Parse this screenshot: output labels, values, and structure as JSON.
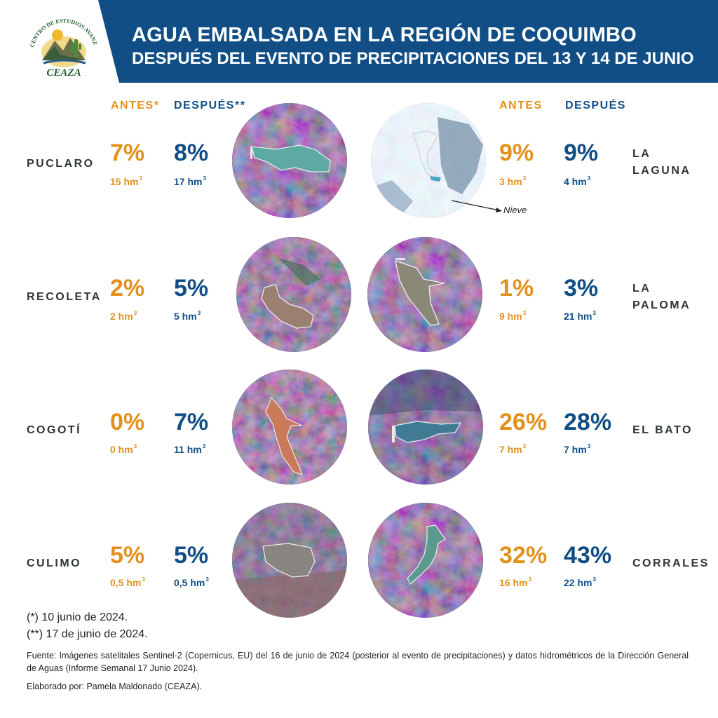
{
  "header": {
    "title": "AGUA EMBALSADA EN LA REGIÓN DE COQUIMBO",
    "subtitle": "DESPUÉS DEL EVENTO DE PRECIPITACIONES DEL 13 Y 14 DE JUNIO",
    "background_color": "#114e86"
  },
  "logo": {
    "org": "CEAZA",
    "arc_text": "CENTRO DE ESTUDIOS AVANZADOS EN ZONAS ÁRIDAS"
  },
  "columns": {
    "left": {
      "antes": "ANTES*",
      "despues": "DESPUÉS**"
    },
    "right": {
      "antes": "ANTES",
      "despues": "DESPUÉS"
    }
  },
  "reservoirs": [
    {
      "name": "PUCLARO",
      "antes_pct": "7%",
      "antes_vol": "15 hm",
      "despues_pct": "8%",
      "despues_vol": "17 hm",
      "unit_exp": "3"
    },
    {
      "name": "RECOLETA",
      "antes_pct": "2%",
      "antes_vol": "2 hm",
      "despues_pct": "5%",
      "despues_vol": "5 hm",
      "unit_exp": "3"
    },
    {
      "name": "COGOTÍ",
      "antes_pct": "0%",
      "antes_vol": "0 hm",
      "despues_pct": "7%",
      "despues_vol": "11 hm",
      "unit_exp": "3"
    },
    {
      "name": "CULIMO",
      "antes_pct": "5%",
      "antes_vol": "0,5 hm",
      "despues_pct": "5%",
      "despues_vol": "0,5 hm",
      "unit_exp": "3"
    },
    {
      "name_line1": "LA",
      "name_line2": "LAGUNA",
      "antes_pct": "9%",
      "antes_vol": "3 hm",
      "despues_pct": "9%",
      "despues_vol": "4 hm",
      "unit_exp": "3"
    },
    {
      "name_line1": "LA",
      "name_line2": "PALOMA",
      "antes_pct": "1%",
      "antes_vol": "9 hm",
      "despues_pct": "3%",
      "despues_vol": "21 hm",
      "unit_exp": "3"
    },
    {
      "name": "EL BATO",
      "antes_pct": "26%",
      "antes_vol": "7 hm",
      "despues_pct": "28%",
      "despues_vol": "7 hm",
      "unit_exp": "3"
    },
    {
      "name": "CORRALES",
      "antes_pct": "32%",
      "antes_vol": "16 hm",
      "despues_pct": "43%",
      "despues_vol": "22 hm",
      "unit_exp": "3"
    }
  ],
  "annotation": {
    "nieve": "Nieve"
  },
  "notes": {
    "antes_date": "(*) 10 junio de 2024.",
    "despues_date": "(**) 17 de junio de 2024.",
    "source": "Fuente: Imágenes satelitales Sentinel-2 (Copernicus, EU) del 16 de junio de 2024 (posterior al evento de precipitaciones) y datos hidrométricos de la Dirección General de Aguas (Informe Semanal 17 Junio 2024).",
    "credit": "Elaborado por: Pamela Maldonado (CEAZA)."
  },
  "colors": {
    "antes": "#e3901c",
    "despues": "#114e86",
    "labels": "#2f3438"
  }
}
